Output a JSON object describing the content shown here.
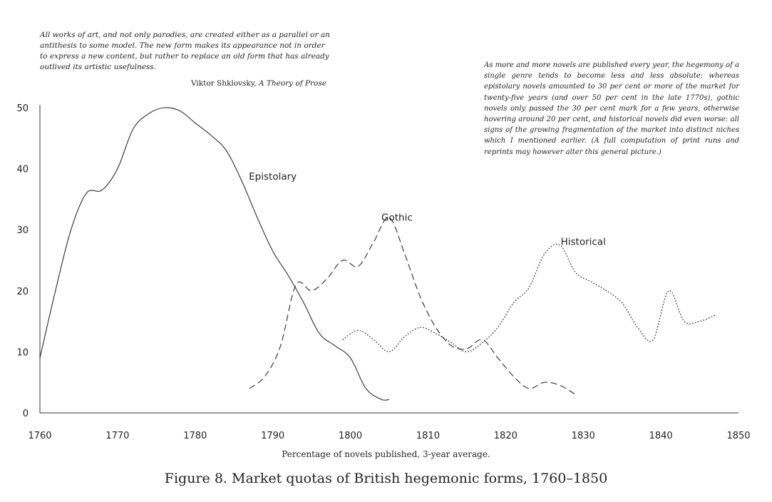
{
  "quote": {
    "text": "All works of art, and not only parodies, are created either as a parallel or an antithesis to some model. The new form makes its appearance not in order to express a new content, but rather to replace an old form that has already outlived its artistic usefulness.",
    "author": "Viktor Shklovsky, ",
    "book": "A Theory of Prose"
  },
  "note": "As more and more novels are published every year, the hegemony of a single genre tends to become less and less absolute: whereas epistolary novels amounted to 30 per cent or more of the market for twenty-five years (and over 50 per cent in the late 1770s), gothic novels only passed the 30 per cent mark for a few years, otherwise hovering around 20 per cent, and historical novels did even worse: all signs of the growing fragmentation of the market into distinct niches which I mentioned earlier. (A full computation of print runs and reprints may however alter this general picture.)",
  "chart_data": {
    "type": "line",
    "title": "Figure 8.    Market quotas of British hegemonic forms, 1760–1850",
    "xlabel": "Percentage of novels published, 3-year average.",
    "ylabel": "",
    "xlim": [
      1760,
      1850
    ],
    "ylim": [
      0,
      50
    ],
    "xticks": [
      1760,
      1770,
      1780,
      1790,
      1800,
      1810,
      1820,
      1830,
      1840,
      1850
    ],
    "yticks": [
      0,
      10,
      20,
      30,
      40,
      50
    ],
    "grid": false,
    "series": [
      {
        "name": "Epistolary",
        "style": "solid",
        "x": [
          1760,
          1762,
          1764,
          1766,
          1768,
          1770,
          1772,
          1774,
          1776,
          1778,
          1780,
          1782,
          1784,
          1786,
          1788,
          1790,
          1792,
          1794,
          1796,
          1798,
          1800,
          1802,
          1804,
          1805
        ],
        "y": [
          9,
          20,
          30,
          36,
          36.5,
          40,
          46.5,
          49,
          50,
          49.5,
          47.5,
          45.5,
          43,
          38,
          32,
          26.5,
          22.5,
          18,
          13,
          11,
          9,
          4,
          2.2,
          2.2
        ]
      },
      {
        "name": "Gothic",
        "style": "dashed",
        "x": [
          1787,
          1789,
          1791,
          1793,
          1795,
          1797,
          1799,
          1801,
          1803,
          1805,
          1807,
          1809,
          1811,
          1813,
          1815,
          1817,
          1819,
          1821,
          1823,
          1825,
          1827,
          1829
        ],
        "y": [
          4,
          6,
          11,
          21,
          20,
          22,
          25,
          24,
          28,
          32,
          26,
          19,
          14,
          11,
          10.5,
          12,
          9,
          6,
          4,
          5,
          4.5,
          3
        ]
      },
      {
        "name": "Historical",
        "style": "dotted",
        "x": [
          1799,
          1801,
          1803,
          1805,
          1807,
          1809,
          1811,
          1813,
          1815,
          1817,
          1819,
          1821,
          1823,
          1825,
          1827,
          1829,
          1831,
          1833,
          1835,
          1837,
          1839,
          1841,
          1843,
          1845,
          1847
        ],
        "y": [
          12,
          13.5,
          12,
          10,
          12.5,
          14,
          13,
          11.5,
          10,
          11.5,
          14,
          18,
          20.5,
          26,
          27.5,
          23,
          21.5,
          20,
          18,
          14,
          12,
          20,
          15,
          15,
          16
        ]
      }
    ],
    "annotations": [
      "Epistolary",
      "Gothic",
      "Historical"
    ]
  }
}
